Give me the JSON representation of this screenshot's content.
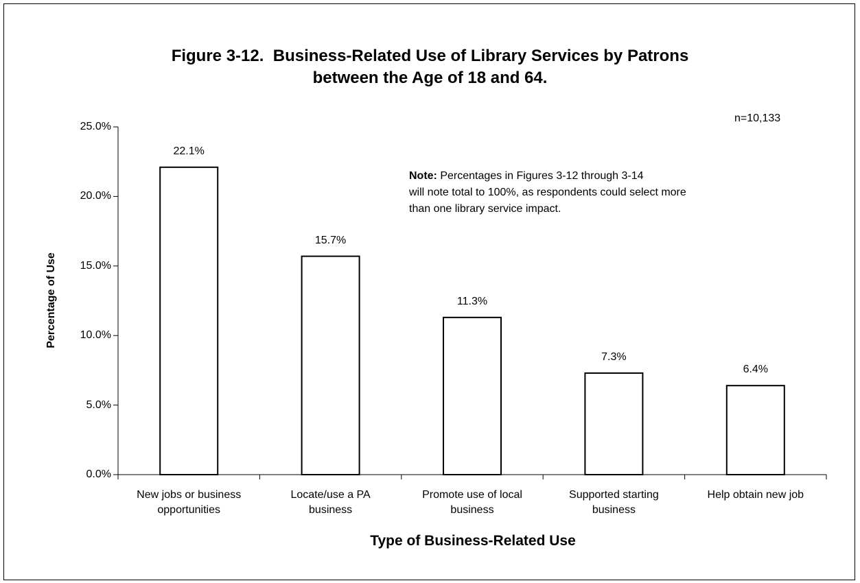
{
  "chart_data": {
    "type": "bar",
    "title": "Figure 3-12.  Business-Related Use of Library Services by Patrons\nbetween the Age of 18 and 64.",
    "annotation": "n=10,133",
    "note_label": "Note:",
    "note": " Percentages in Figures 3-12 through 3-14\nwill note total to 100%, as respondents could select more\nthan one library service impact.",
    "x_label": "Type of Business-Related Use",
    "y_label": "Percentage of Use",
    "categories": [
      "New jobs or business\nopportunities",
      "Locate/use a PA\nbusiness",
      "Promote use of local\nbusiness",
      "Supported starting\nbusiness",
      "Help obtain new job"
    ],
    "values": [
      22.1,
      15.7,
      11.3,
      7.3,
      6.4
    ],
    "value_labels": [
      "22.1%",
      "15.7%",
      "11.3%",
      "7.3%",
      "6.4%"
    ],
    "color": "#ffffff",
    "ylim": [
      0,
      25
    ],
    "yticks": [
      {
        "value": 0,
        "label": "0.0%"
      },
      {
        "value": 5,
        "label": "5.0%"
      },
      {
        "value": 10,
        "label": "10.0%"
      },
      {
        "value": 15,
        "label": "15.0%"
      },
      {
        "value": 20,
        "label": "20.0%"
      },
      {
        "value": 25,
        "label": "25.0%"
      }
    ],
    "grid": false
  }
}
